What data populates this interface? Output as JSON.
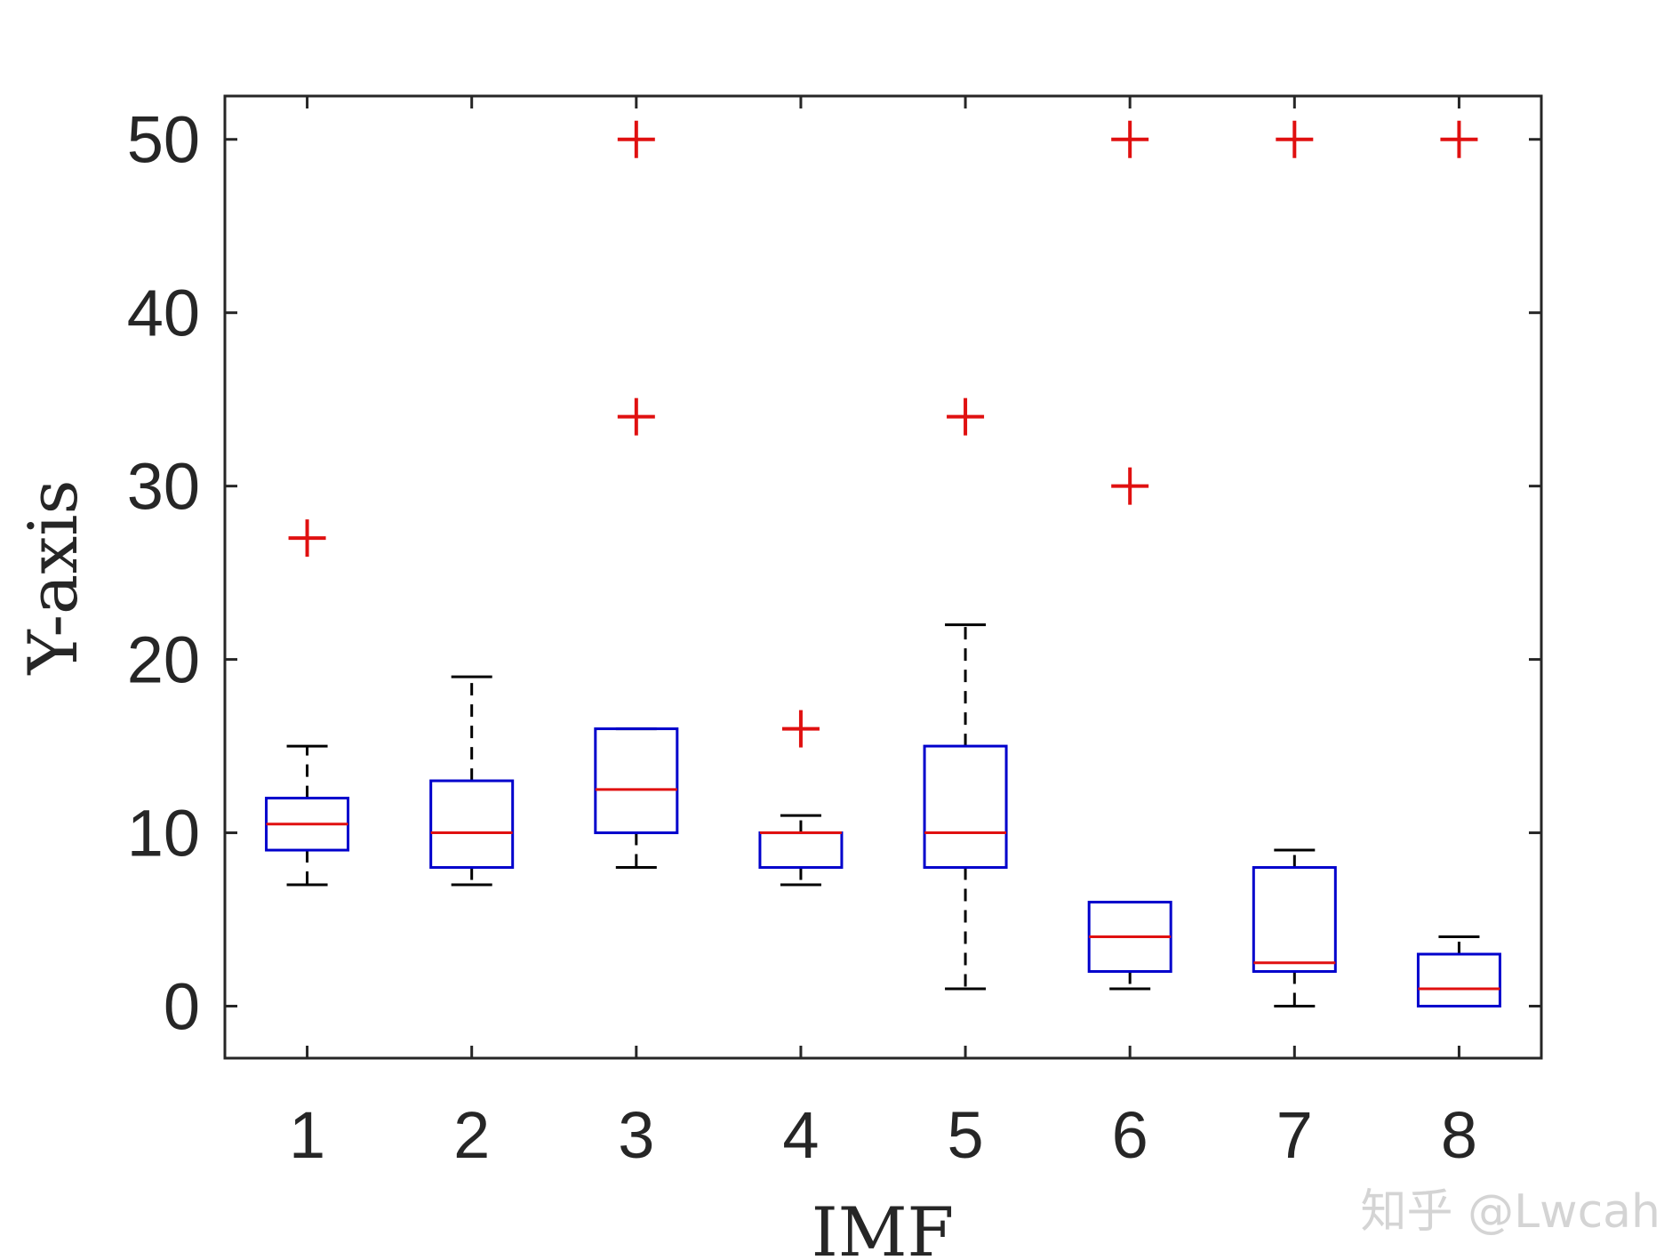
{
  "chart_data": {
    "type": "boxplot",
    "title": "",
    "xlabel": "IMF",
    "ylabel": "Y-axis",
    "xlim": [
      0.5,
      8.5
    ],
    "ylim": [
      -3,
      52.5
    ],
    "yticks": [
      0,
      10,
      20,
      30,
      40,
      50
    ],
    "categories": [
      "1",
      "2",
      "3",
      "4",
      "5",
      "6",
      "7",
      "8"
    ],
    "grid": false,
    "colors": {
      "box": "#0000cc",
      "median": "#e01010",
      "whisker": "#000000",
      "outlier": "#e01010",
      "axis": "#262626"
    },
    "boxes": [
      {
        "category": "1",
        "whisker_low": 7,
        "q1": 9,
        "median": 10.5,
        "q3": 12,
        "whisker_high": 15,
        "outliers": [
          27
        ]
      },
      {
        "category": "2",
        "whisker_low": 7,
        "q1": 8,
        "median": 10,
        "q3": 13,
        "whisker_high": 19,
        "outliers": []
      },
      {
        "category": "3",
        "whisker_low": 8,
        "q1": 10,
        "median": 12.5,
        "q3": 16,
        "whisker_high": 16,
        "outliers": [
          34,
          50
        ]
      },
      {
        "category": "4",
        "whisker_low": 7,
        "q1": 8,
        "median": 10,
        "q3": 10,
        "whisker_high": 11,
        "outliers": [
          16
        ]
      },
      {
        "category": "5",
        "whisker_low": 1,
        "q1": 8,
        "median": 10,
        "q3": 15,
        "whisker_high": 22,
        "outliers": [
          34
        ]
      },
      {
        "category": "6",
        "whisker_low": 1,
        "q1": 2,
        "median": 4,
        "q3": 6,
        "whisker_high": 6,
        "outliers": [
          30,
          50
        ]
      },
      {
        "category": "7",
        "whisker_low": 0,
        "q1": 2,
        "median": 2.5,
        "q3": 8,
        "whisker_high": 9,
        "outliers": [
          50
        ]
      },
      {
        "category": "8",
        "whisker_low": 0,
        "q1": 0,
        "median": 1,
        "q3": 3,
        "whisker_high": 4,
        "outliers": [
          50
        ]
      }
    ]
  },
  "watermark": "知乎 @Lwcah"
}
